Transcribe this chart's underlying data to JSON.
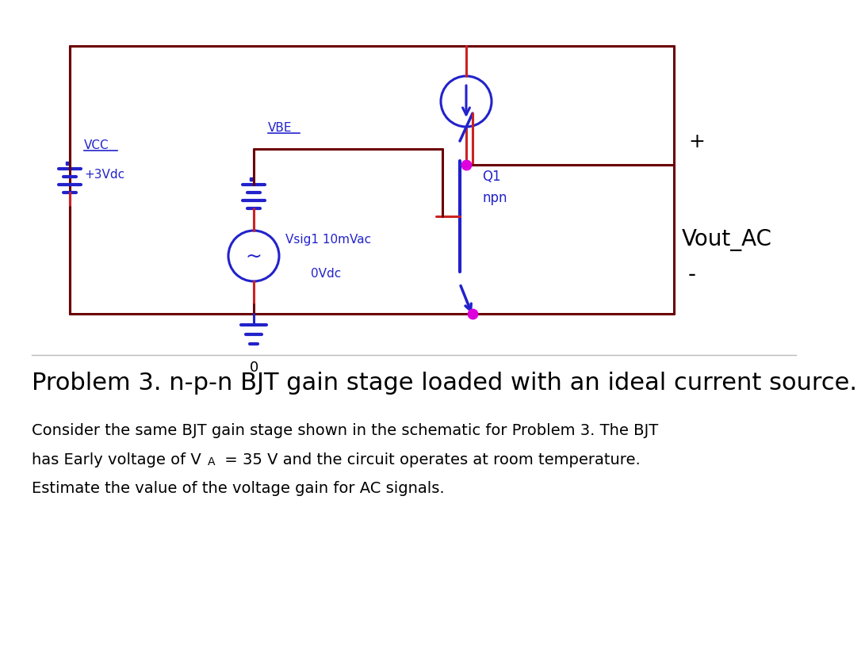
{
  "bg_color": "#ffffff",
  "wire_color": "#6b0000",
  "blue_color": "#2222cc",
  "magenta_color": "#dd00dd",
  "red_color": "#cc1111",
  "black_color": "#000000",
  "title": "Problem 3. n-p-n BJT gain stage loaded with an ideal current source.",
  "body_text1": "Consider the same BJT gain stage shown in the schematic for Problem 3. The BJT",
  "body_text2a": "has Early voltage of V",
  "body_text2b": "A",
  "body_text2c": " = 35 V and the circuit operates at room temperature.",
  "body_text3": "Estimate the value of the voltage gain for AC signals.",
  "title_fontsize": 22,
  "body_fontsize": 14,
  "label_vcc": "VCC",
  "label_vcc2": "+3Vdc",
  "label_vbe": "VBE",
  "label_vsig1": "Vsig1 10mVac",
  "label_vsig2": "0Vdc",
  "label_q1": "Q1",
  "label_npn": "npn",
  "label_vout": "Vout_AC",
  "label_gnd": "0",
  "label_plus": "+",
  "label_minus": "-"
}
